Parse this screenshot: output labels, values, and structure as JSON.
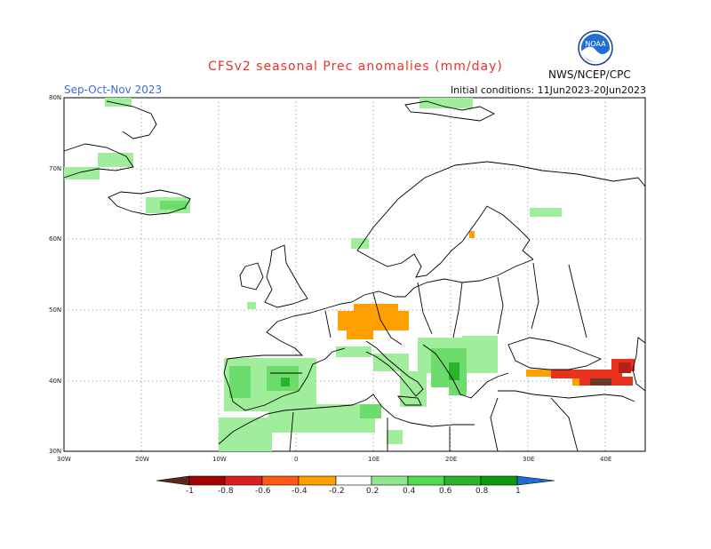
{
  "title": "CFSv2 seasonal Prec anomalies (mm/day)",
  "season": "Sep-Oct-Nov 2023",
  "initial_conditions": "Initial conditions: 11Jun2023-20Jun2023",
  "credit": "NWS/NCEP/CPC",
  "logo_text": "NOAA",
  "lat_labels": [
    "80N",
    "70N",
    "60N",
    "50N",
    "40N",
    "30N"
  ],
  "lon_labels": [
    "30W",
    "20W",
    "10W",
    "0",
    "10E",
    "20E",
    "30E",
    "40E"
  ],
  "colorbar": {
    "labels": [
      "-1",
      "-0.8",
      "-0.6",
      "-0.4",
      "-0.2",
      "0.2",
      "0.4",
      "0.6",
      "0.8",
      "1"
    ],
    "colors": [
      "#5a2a1a",
      "#a40000",
      "#d82020",
      "#ff5a14",
      "#ffa000",
      "#ffffff",
      "#8fe68f",
      "#50dc50",
      "#2ab42a",
      "#0a9a0a",
      "#1e6ed2"
    ]
  },
  "map": {
    "lon_range": [
      -30,
      45
    ],
    "lat_range": [
      30,
      80
    ],
    "grid": true,
    "anomaly_colors": {
      "light_green": "#a0ee9c",
      "green": "#6cdc6c",
      "orange": "#ffa000",
      "red": "#e8321e",
      "dark_red": "#b4201a",
      "brown": "#6b3a24"
    }
  }
}
